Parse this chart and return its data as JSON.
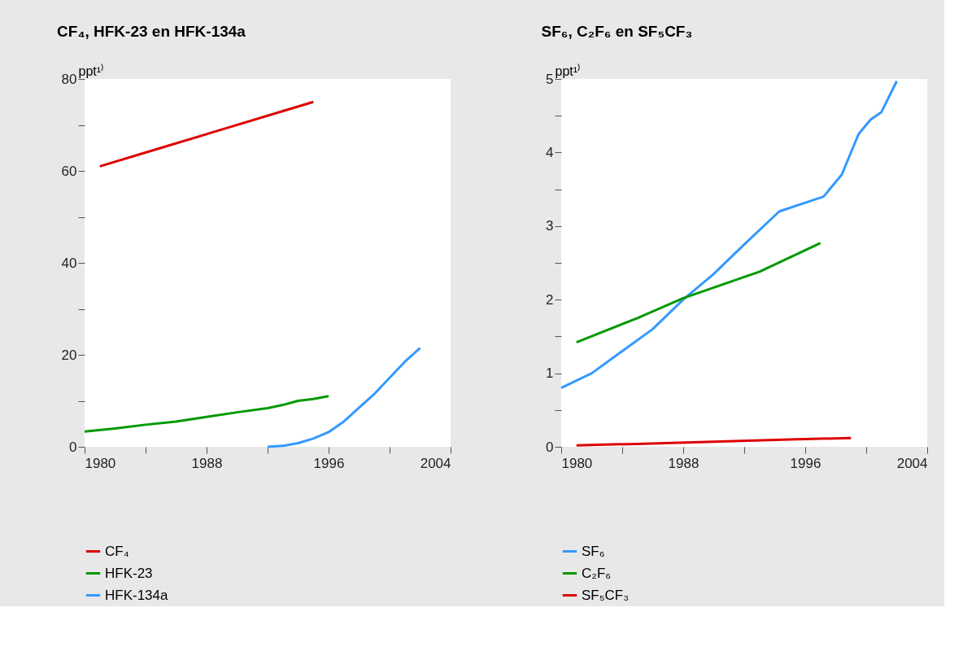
{
  "chart_data": [
    {
      "type": "line",
      "title": "CF₄, HFK-23 en HFK-134a",
      "ylabel": "ppt¹⁾",
      "legend": "bottom",
      "grid": false,
      "xlim": [
        1980,
        2004
      ],
      "xticks": [
        1980,
        {
          "value": 1984,
          "label": null
        },
        1988,
        {
          "value": 1992,
          "label": null
        },
        1996,
        {
          "value": 2000,
          "label": null
        },
        2004
      ],
      "ylim": [
        0,
        80
      ],
      "yticks": [
        0,
        {
          "value": 10,
          "label": null
        },
        20,
        {
          "value": 30,
          "label": null
        },
        40,
        {
          "value": 50,
          "label": null
        },
        60,
        {
          "value": 70,
          "label": null
        },
        80
      ],
      "series": [
        {
          "name": "CF₄",
          "color": "#dd0000",
          "x": [
            1981,
            1985,
            1989,
            1993,
            1995
          ],
          "values": [
            61,
            65,
            69,
            73,
            75
          ]
        },
        {
          "name": "HFK-23",
          "color": "#009900",
          "x": [
            1980,
            1982,
            1984,
            1986,
            1988,
            1990,
            1992,
            1993,
            1994,
            1995,
            1996
          ],
          "values": [
            3.3,
            4.0,
            4.8,
            5.5,
            6.5,
            7.5,
            8.4,
            9.1,
            10.0,
            10.4,
            11.0
          ]
        },
        {
          "name": "HFK-134a",
          "color": "#3399ff",
          "x": [
            1992,
            1993,
            1994,
            1995,
            1996,
            1997,
            1998,
            1999,
            2000,
            2001,
            2002
          ],
          "values": [
            0,
            0.2,
            0.8,
            1.8,
            3.2,
            5.5,
            8.5,
            11.5,
            15,
            18.5,
            21.5
          ]
        }
      ]
    },
    {
      "type": "line",
      "title": "SF₆, C₂F₆ en SF₅CF₃",
      "ylabel": "ppt¹⁾",
      "legend": "bottom",
      "grid": false,
      "xlim": [
        1980,
        2004
      ],
      "xticks": [
        1980,
        {
          "value": 1984,
          "label": null
        },
        1988,
        {
          "value": 1992,
          "label": null
        },
        1996,
        {
          "value": 2000,
          "label": null
        },
        2004
      ],
      "ylim": [
        0,
        5
      ],
      "yticks": [
        0,
        {
          "value": 0.5,
          "label": null
        },
        1,
        {
          "value": 1.5,
          "label": null
        },
        2,
        {
          "value": 2.5,
          "label": null
        },
        3,
        {
          "value": 3.5,
          "label": null
        },
        4,
        {
          "value": 4.5,
          "label": null
        },
        5
      ],
      "series": [
        {
          "name": "SF₆",
          "color": "#3399ff",
          "x": [
            1980,
            1982,
            1984,
            1986,
            1988,
            1990,
            1992,
            1994.3,
            1997.2,
            1998.4,
            1999.5,
            2000.3,
            2001,
            2002
          ],
          "values": [
            0.8,
            1.0,
            1.3,
            1.6,
            2.0,
            2.35,
            2.75,
            3.2,
            3.4,
            3.7,
            4.25,
            4.45,
            4.55,
            4.97
          ]
        },
        {
          "name": "C₂F₆",
          "color": "#009900",
          "x": [
            1981,
            1985,
            1988,
            1993,
            1997
          ],
          "values": [
            1.42,
            1.75,
            2.02,
            2.38,
            2.77
          ]
        },
        {
          "name": "SF₅CF₃",
          "color": "#dd0000",
          "x": [
            1981,
            1985,
            1990,
            1995,
            1999
          ],
          "values": [
            0.02,
            0.04,
            0.07,
            0.1,
            0.12
          ]
        }
      ]
    }
  ]
}
